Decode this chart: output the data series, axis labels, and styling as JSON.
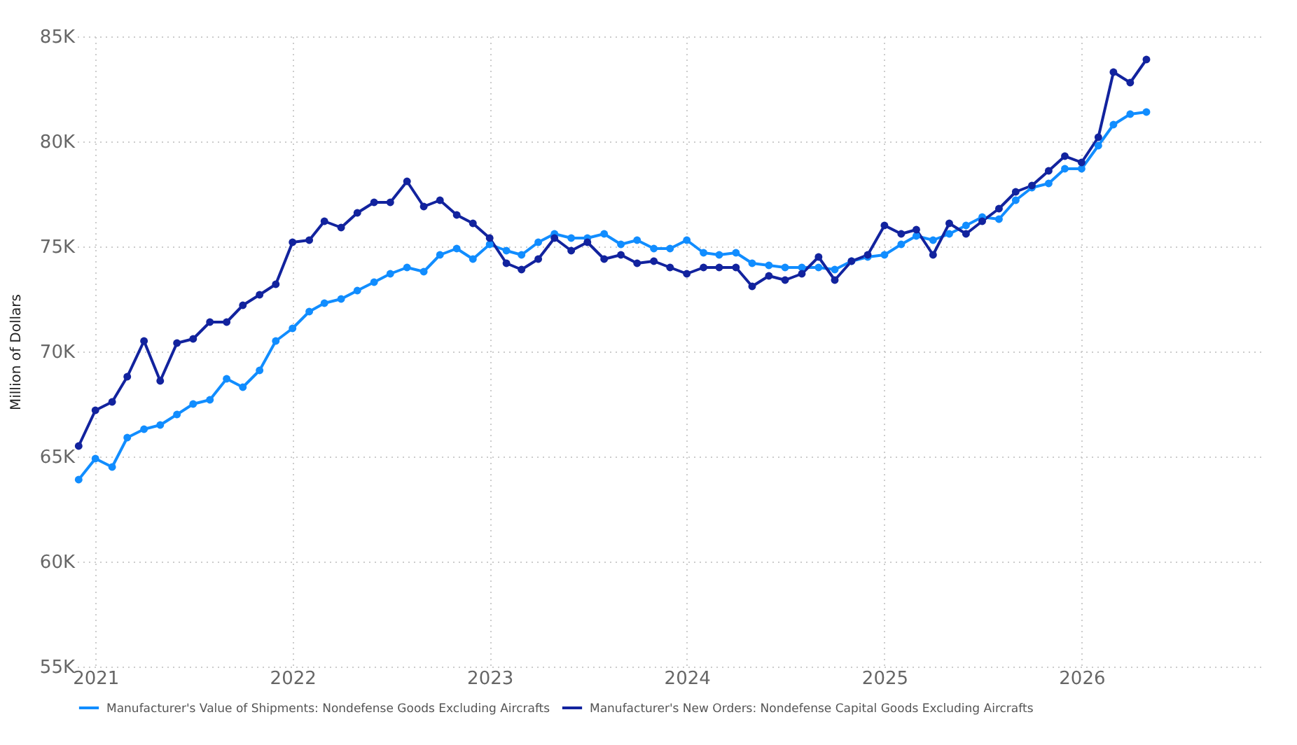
{
  "chart_data": {
    "type": "line",
    "ylabel": "Million of Dollars",
    "x": [
      "2020-12",
      "2021-01",
      "2021-02",
      "2021-03",
      "2021-04",
      "2021-05",
      "2021-06",
      "2021-07",
      "2021-08",
      "2021-09",
      "2021-10",
      "2021-11",
      "2021-12",
      "2022-01",
      "2022-02",
      "2022-03",
      "2022-04",
      "2022-05",
      "2022-06",
      "2022-07",
      "2022-08",
      "2022-09",
      "2022-10",
      "2022-11",
      "2022-12",
      "2023-01",
      "2023-02",
      "2023-03",
      "2023-04",
      "2023-05",
      "2023-06",
      "2023-07",
      "2023-08",
      "2023-09",
      "2023-10",
      "2023-11",
      "2023-12",
      "2024-01",
      "2024-02",
      "2024-03",
      "2024-04",
      "2024-05",
      "2024-06",
      "2024-07",
      "2024-08",
      "2024-09",
      "2024-10",
      "2024-11",
      "2024-12",
      "2025-01",
      "2025-02",
      "2025-03",
      "2025-04",
      "2025-05",
      "2025-06",
      "2025-07",
      "2025-08",
      "2025-09",
      "2025-10",
      "2025-11",
      "2025-12",
      "2026-01",
      "2026-02",
      "2026-03",
      "2026-04",
      "2026-05"
    ],
    "series": [
      {
        "name": "Manufacturer's Value of Shipments: Nondefense Goods Excluding Aircrafts",
        "color": "#118dff",
        "values": [
          63900,
          64900,
          64500,
          65900,
          66300,
          66500,
          67000,
          67500,
          67700,
          68700,
          68300,
          69100,
          70500,
          71100,
          71900,
          72300,
          72500,
          72900,
          73300,
          73700,
          74000,
          73800,
          74600,
          74900,
          74400,
          75100,
          74800,
          74600,
          75200,
          75600,
          75400,
          75400,
          75600,
          75100,
          75300,
          74900,
          74900,
          75300,
          74700,
          74600,
          74700,
          74200,
          74100,
          74000,
          74000,
          74000,
          73900,
          74300,
          74500,
          74600,
          75100,
          75500,
          75300,
          75600,
          76000,
          76400,
          76300,
          77200,
          77800,
          78000,
          78700,
          78700,
          79800,
          80800,
          81300,
          81400
        ]
      },
      {
        "name": "Manufacturer's New Orders: Nondefense Capital Goods Excluding Aircrafts",
        "color": "#12239e",
        "values": [
          65500,
          67200,
          67600,
          68800,
          70500,
          68600,
          70400,
          70600,
          71400,
          71400,
          72200,
          72700,
          73200,
          75200,
          75300,
          76200,
          75900,
          76600,
          77100,
          77100,
          78100,
          76900,
          77200,
          76500,
          76100,
          75400,
          74200,
          73900,
          74400,
          75400,
          74800,
          75200,
          74400,
          74600,
          74200,
          74300,
          74000,
          73700,
          74000,
          74000,
          74000,
          73100,
          73600,
          73400,
          73700,
          74500,
          73400,
          74300,
          74600,
          76000,
          75600,
          75800,
          74600,
          76100,
          75600,
          76200,
          76800,
          77600,
          77900,
          78600,
          79300,
          79000,
          80200,
          83300,
          82800,
          83900
        ]
      }
    ],
    "xlim": [
      "2020-11-28",
      "2026-12-01"
    ],
    "xticks": [
      {
        "value": "2021-01-01",
        "label": "2021"
      },
      {
        "value": "2022-01-01",
        "label": "2022"
      },
      {
        "value": "2023-01-01",
        "label": "2023"
      },
      {
        "value": "2024-01-01",
        "label": "2024"
      },
      {
        "value": "2025-01-01",
        "label": "2025"
      },
      {
        "value": "2026-01-01",
        "label": "2026"
      }
    ],
    "ylim": [
      55000,
      85000
    ],
    "yticks": [
      {
        "value": 55000,
        "label": "55K"
      },
      {
        "value": 60000,
        "label": "60K"
      },
      {
        "value": 65000,
        "label": "65K"
      },
      {
        "value": 70000,
        "label": "70K"
      },
      {
        "value": 75000,
        "label": "75K"
      },
      {
        "value": 80000,
        "label": "80K"
      },
      {
        "value": 85000,
        "label": "85K"
      }
    ],
    "grid": true,
    "legend": "bottom",
    "marker": "circle",
    "line_style": "solid"
  }
}
